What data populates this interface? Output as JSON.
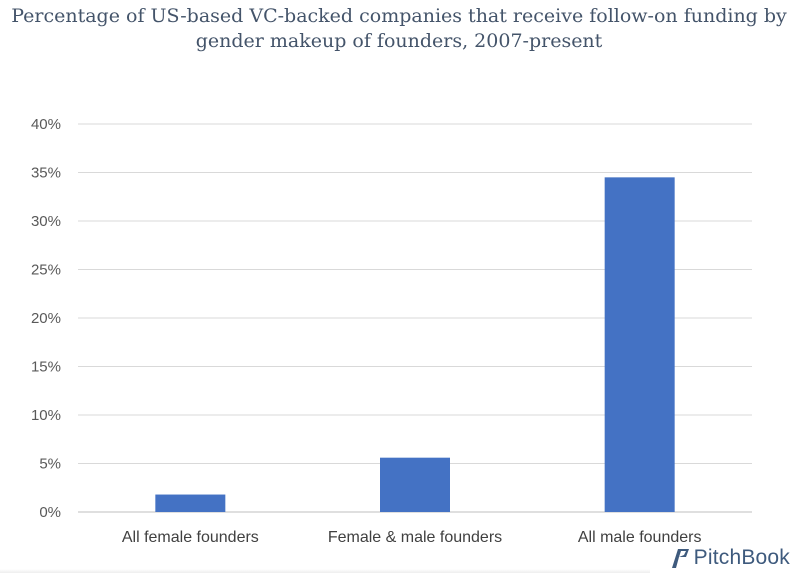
{
  "chart_data": {
    "type": "bar",
    "title": "Percentage of US-based VC-backed companies that receive follow-on funding by gender makeup of founders, 2007-present",
    "categories": [
      "All female founders",
      "Female & male founders",
      "All male founders"
    ],
    "values": [
      1.8,
      5.6,
      34.5
    ],
    "value_format": "percent",
    "yticks": [
      "0%",
      "5%",
      "10%",
      "15%",
      "20%",
      "25%",
      "30%",
      "35%",
      "40%"
    ],
    "ylim": [
      0,
      40
    ],
    "grid": true,
    "legend": "none",
    "bar_color": "#4472c4"
  },
  "branding": {
    "logo_text": "PitchBook",
    "logo_icon": "pitchbook-flag-icon"
  }
}
